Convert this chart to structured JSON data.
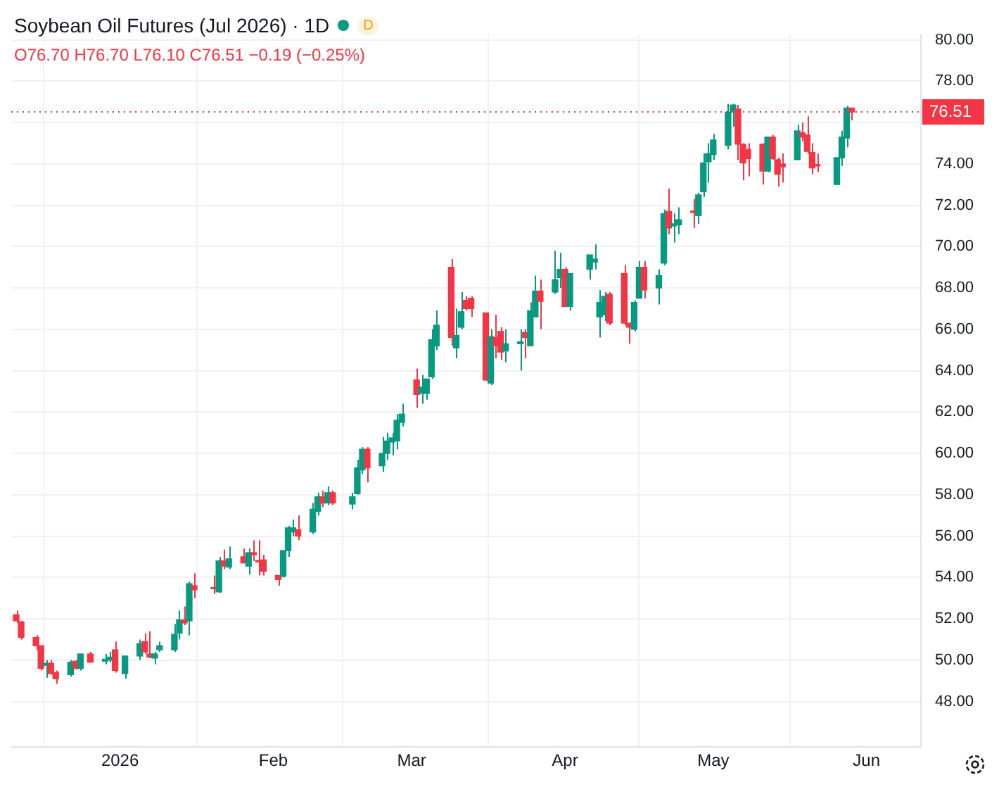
{
  "chart_data": {
    "type": "candlestick",
    "title": "Soybean Oil Futures (Jul 2026) · 1D",
    "subtitle": "O76.70 H76.70 L76.10 C76.51 −0.19 (−0.25%)",
    "annotations": [
      "D"
    ],
    "x": [
      "2025-12-11",
      "2025-12-12",
      "2025-12-15",
      "2025-12-16",
      "2025-12-17",
      "2025-12-18",
      "2025-12-19",
      "2025-12-22",
      "2025-12-23",
      "2025-12-24",
      "2025-12-26",
      "2025-12-29",
      "2025-12-30",
      "2025-12-31",
      "2026-01-02",
      "2026-01-05",
      "2026-01-06",
      "2026-01-07",
      "2026-01-08",
      "2026-01-09",
      "2026-01-12",
      "2026-01-13",
      "2026-01-14",
      "2026-01-15",
      "2026-01-16",
      "2026-01-20",
      "2026-01-21",
      "2026-01-22",
      "2026-01-23",
      "2026-01-26",
      "2026-01-27",
      "2026-01-28",
      "2026-01-29",
      "2026-01-30",
      "2026-02-02",
      "2026-02-03",
      "2026-02-04",
      "2026-02-05",
      "2026-02-06",
      "2026-02-09",
      "2026-02-10",
      "2026-02-11",
      "2026-02-12",
      "2026-02-13",
      "2026-02-17",
      "2026-02-18",
      "2026-02-19",
      "2026-02-20",
      "2026-02-23",
      "2026-02-24",
      "2026-02-25",
      "2026-02-26",
      "2026-02-27",
      "2026-03-02",
      "2026-03-03",
      "2026-03-04",
      "2026-03-05",
      "2026-03-06",
      "2026-03-09",
      "2026-03-10",
      "2026-03-11",
      "2026-03-12",
      "2026-03-13",
      "2026-03-16",
      "2026-03-17",
      "2026-03-18",
      "2026-03-19",
      "2026-03-20",
      "2026-03-23",
      "2026-03-24",
      "2026-03-25",
      "2026-03-26",
      "2026-03-27",
      "2026-03-30",
      "2026-03-31",
      "2026-04-01",
      "2026-04-02",
      "2026-04-06",
      "2026-04-07",
      "2026-04-08",
      "2026-04-09",
      "2026-04-10",
      "2026-04-13",
      "2026-04-14",
      "2026-04-15",
      "2026-04-16",
      "2026-04-17",
      "2026-04-20",
      "2026-04-21",
      "2026-04-22",
      "2026-04-23",
      "2026-04-24",
      "2026-04-27",
      "2026-04-28",
      "2026-04-29",
      "2026-04-30",
      "2026-05-01",
      "2026-05-04",
      "2026-05-05",
      "2026-05-06",
      "2026-05-07",
      "2026-05-08",
      "2026-05-11",
      "2026-05-12",
      "2026-05-13",
      "2026-05-14",
      "2026-05-15",
      "2026-05-18",
      "2026-05-19",
      "2026-05-20",
      "2026-05-21",
      "2026-05-22",
      "2026-05-26",
      "2026-05-27",
      "2026-05-28",
      "2026-05-29"
    ],
    "ohlc": [
      [
        52.2,
        52.4,
        51.8,
        51.9
      ],
      [
        51.85,
        51.9,
        51.0,
        51.1
      ],
      [
        51.1,
        51.2,
        50.5,
        50.7
      ],
      [
        50.7,
        50.7,
        49.5,
        49.6
      ],
      [
        49.75,
        50.0,
        49.15,
        49.85
      ],
      [
        49.85,
        50.0,
        49.3,
        49.35
      ],
      [
        49.4,
        49.5,
        48.85,
        49.1
      ],
      [
        49.3,
        50.0,
        49.2,
        49.9
      ],
      [
        49.95,
        50.0,
        49.55,
        49.6
      ],
      [
        49.6,
        50.3,
        49.5,
        50.3
      ],
      [
        50.3,
        50.4,
        49.9,
        49.9
      ],
      [
        49.95,
        50.3,
        49.8,
        50.05
      ],
      [
        50.0,
        50.4,
        49.9,
        50.15
      ],
      [
        50.5,
        50.9,
        49.4,
        49.5
      ],
      [
        49.35,
        50.2,
        49.1,
        50.2
      ],
      [
        50.2,
        51.0,
        50.0,
        50.8
      ],
      [
        50.9,
        51.3,
        50.3,
        50.4
      ],
      [
        50.3,
        51.4,
        50.1,
        50.15
      ],
      [
        50.1,
        50.4,
        49.8,
        50.3
      ],
      [
        50.5,
        50.9,
        50.4,
        50.7
      ],
      [
        50.5,
        51.75,
        50.4,
        51.25
      ],
      [
        51.3,
        52.4,
        51.0,
        51.95
      ],
      [
        51.95,
        52.6,
        51.7,
        51.8
      ],
      [
        51.9,
        53.8,
        51.2,
        53.7
      ],
      [
        53.6,
        54.2,
        53.0,
        53.4
      ],
      [
        53.5,
        54.1,
        53.2,
        53.45
      ],
      [
        53.3,
        55.0,
        53.25,
        54.8
      ],
      [
        54.8,
        55.35,
        54.4,
        54.55
      ],
      [
        54.5,
        55.5,
        54.4,
        54.9
      ],
      [
        55.0,
        55.4,
        54.7,
        54.7
      ],
      [
        54.55,
        55.4,
        54.15,
        55.2
      ],
      [
        55.2,
        55.8,
        54.8,
        55.1
      ],
      [
        54.8,
        55.8,
        54.1,
        54.75
      ],
      [
        54.85,
        55.1,
        54.1,
        54.3
      ],
      [
        54.1,
        54.1,
        53.6,
        53.9
      ],
      [
        54.05,
        55.3,
        54.0,
        55.3
      ],
      [
        55.3,
        56.5,
        55.0,
        56.4
      ],
      [
        56.2,
        56.8,
        56.0,
        56.4
      ],
      [
        56.3,
        57.0,
        55.8,
        56.0
      ],
      [
        56.2,
        57.6,
        56.1,
        57.3
      ],
      [
        57.2,
        58.1,
        57.0,
        57.9
      ],
      [
        57.9,
        58.2,
        57.4,
        57.6
      ],
      [
        57.6,
        58.4,
        57.5,
        58.1
      ],
      [
        58.1,
        58.2,
        57.5,
        57.6
      ],
      [
        57.55,
        58.1,
        57.3,
        57.9
      ],
      [
        58.05,
        59.7,
        58.0,
        59.3
      ],
      [
        59.2,
        60.3,
        59.0,
        60.2
      ],
      [
        60.2,
        60.3,
        58.6,
        59.3
      ],
      [
        59.4,
        60.8,
        59.1,
        60.0
      ],
      [
        60.0,
        61.0,
        59.7,
        60.6
      ],
      [
        60.55,
        61.0,
        59.9,
        60.75
      ],
      [
        60.6,
        61.9,
        60.2,
        61.6
      ],
      [
        61.5,
        62.4,
        61.3,
        61.9
      ],
      [
        63.55,
        64.1,
        62.2,
        62.85
      ],
      [
        62.9,
        63.8,
        62.4,
        63.2
      ],
      [
        62.9,
        63.6,
        62.6,
        63.6
      ],
      [
        63.7,
        66.0,
        63.6,
        65.5
      ],
      [
        65.2,
        66.9,
        65.0,
        66.2
      ],
      [
        69.0,
        69.4,
        65.2,
        65.6
      ],
      [
        65.1,
        67.0,
        64.6,
        65.7
      ],
      [
        66.1,
        67.8,
        66.0,
        66.85
      ],
      [
        67.4,
        67.6,
        66.9,
        67.0
      ],
      [
        67.5,
        67.6,
        66.6,
        67.0
      ],
      [
        66.8,
        66.8,
        63.5,
        63.55
      ],
      [
        63.4,
        66.0,
        63.3,
        65.65
      ],
      [
        65.6,
        66.7,
        64.6,
        65.2
      ],
      [
        65.9,
        66.1,
        64.5,
        64.9
      ],
      [
        64.95,
        66.0,
        64.4,
        65.3
      ],
      [
        65.3,
        66.0,
        64.0,
        65.4
      ],
      [
        65.85,
        66.0,
        64.6,
        65.6
      ],
      [
        65.2,
        67.3,
        65.2,
        66.9
      ],
      [
        66.6,
        68.6,
        66.6,
        67.85
      ],
      [
        67.85,
        68.4,
        66.0,
        67.35
      ],
      [
        67.8,
        69.8,
        67.7,
        68.4
      ],
      [
        68.5,
        69.7,
        68.0,
        68.9
      ],
      [
        68.9,
        69.0,
        67.1,
        67.1
      ],
      [
        67.1,
        68.7,
        66.9,
        68.7
      ],
      [
        68.9,
        69.6,
        68.4,
        69.6
      ],
      [
        69.25,
        70.1,
        68.9,
        69.4
      ],
      [
        66.6,
        67.9,
        65.6,
        67.3
      ],
      [
        66.7,
        67.8,
        66.4,
        67.6
      ],
      [
        67.7,
        67.8,
        66.2,
        66.3
      ],
      [
        68.7,
        69.1,
        66.2,
        66.3
      ],
      [
        66.3,
        66.3,
        65.3,
        66.1
      ],
      [
        66.0,
        67.4,
        65.9,
        67.3
      ],
      [
        67.5,
        69.3,
        67.5,
        69.0
      ],
      [
        69.0,
        69.3,
        67.5,
        67.9
      ],
      [
        68.0,
        68.9,
        67.2,
        68.6
      ],
      [
        69.2,
        71.8,
        69.1,
        71.6
      ],
      [
        71.7,
        72.8,
        70.6,
        70.9
      ],
      [
        71.0,
        71.6,
        70.2,
        71.1
      ],
      [
        71.05,
        71.9,
        70.6,
        71.3
      ],
      [
        71.7,
        72.3,
        70.9,
        71.65
      ],
      [
        71.5,
        72.6,
        71.1,
        72.5
      ],
      [
        72.65,
        74.5,
        72.4,
        74.05
      ],
      [
        74.1,
        75.0,
        73.1,
        74.5
      ],
      [
        74.45,
        75.45,
        74.2,
        75.15
      ],
      [
        74.9,
        76.9,
        74.7,
        76.5
      ],
      [
        76.5,
        76.9,
        75.8,
        76.85
      ],
      [
        76.65,
        76.85,
        74.2,
        74.95
      ],
      [
        74.95,
        75.0,
        73.2,
        74.05
      ],
      [
        74.7,
        75.0,
        73.4,
        74.25
      ],
      [
        74.95,
        75.0,
        73.0,
        73.65
      ],
      [
        73.65,
        75.3,
        73.6,
        75.3
      ],
      [
        75.3,
        75.4,
        74.2,
        74.25
      ],
      [
        74.2,
        74.3,
        72.9,
        73.5
      ],
      [
        74.0,
        74.5,
        73.1,
        73.85
      ],
      [
        74.2,
        75.9,
        74.2,
        75.6
      ],
      [
        75.5,
        76.0,
        75.1,
        75.3
      ],
      [
        75.4,
        76.3,
        74.5,
        74.6
      ],
      [
        74.55,
        75.0,
        73.5,
        73.8
      ],
      [
        73.95,
        74.5,
        73.6,
        73.9
      ],
      [
        73.0,
        74.3,
        73.0,
        74.3
      ],
      [
        74.3,
        75.6,
        73.9,
        75.3
      ],
      [
        75.25,
        76.8,
        74.8,
        76.7
      ],
      [
        76.7,
        76.7,
        76.1,
        76.51
      ]
    ],
    "xlim": [
      "2025-12-10",
      "2026-06-12"
    ],
    "xticks": [
      {
        "value": "2026-01-01",
        "label": "2026"
      },
      {
        "value": "2026-02-01",
        "label": "Feb"
      },
      {
        "value": "2026-03-01",
        "label": "Mar"
      },
      {
        "value": "2026-04-01",
        "label": "Apr"
      },
      {
        "value": "2026-05-01",
        "label": "May"
      },
      {
        "value": "2026-06-01",
        "label": "Jun"
      }
    ],
    "ylim": [
      45.8,
      80.25
    ],
    "yticks": [
      {
        "value": 48,
        "label": "48.00"
      },
      {
        "value": 50,
        "label": "50.00"
      },
      {
        "value": 52,
        "label": "52.00"
      },
      {
        "value": 54,
        "label": "54.00"
      },
      {
        "value": 56,
        "label": "56.00"
      },
      {
        "value": 58,
        "label": "58.00"
      },
      {
        "value": 60,
        "label": "60.00"
      },
      {
        "value": 62,
        "label": "62.00"
      },
      {
        "value": 64,
        "label": "64.00"
      },
      {
        "value": 66,
        "label": "66.00"
      },
      {
        "value": 68,
        "label": "68.00"
      },
      {
        "value": 70,
        "label": "70.00"
      },
      {
        "value": 72,
        "label": "72.00"
      },
      {
        "value": 74,
        "label": "74.00"
      },
      {
        "value": 76,
        "label": null
      },
      {
        "value": 78,
        "label": "78.00"
      },
      {
        "value": 80,
        "label": "80.00"
      }
    ],
    "ref_lines": [
      {
        "axis": "y",
        "value": 76.51,
        "label": "76.51",
        "color": "#f23645",
        "line_style": "dotted"
      }
    ],
    "grid": true,
    "legend": false
  }
}
